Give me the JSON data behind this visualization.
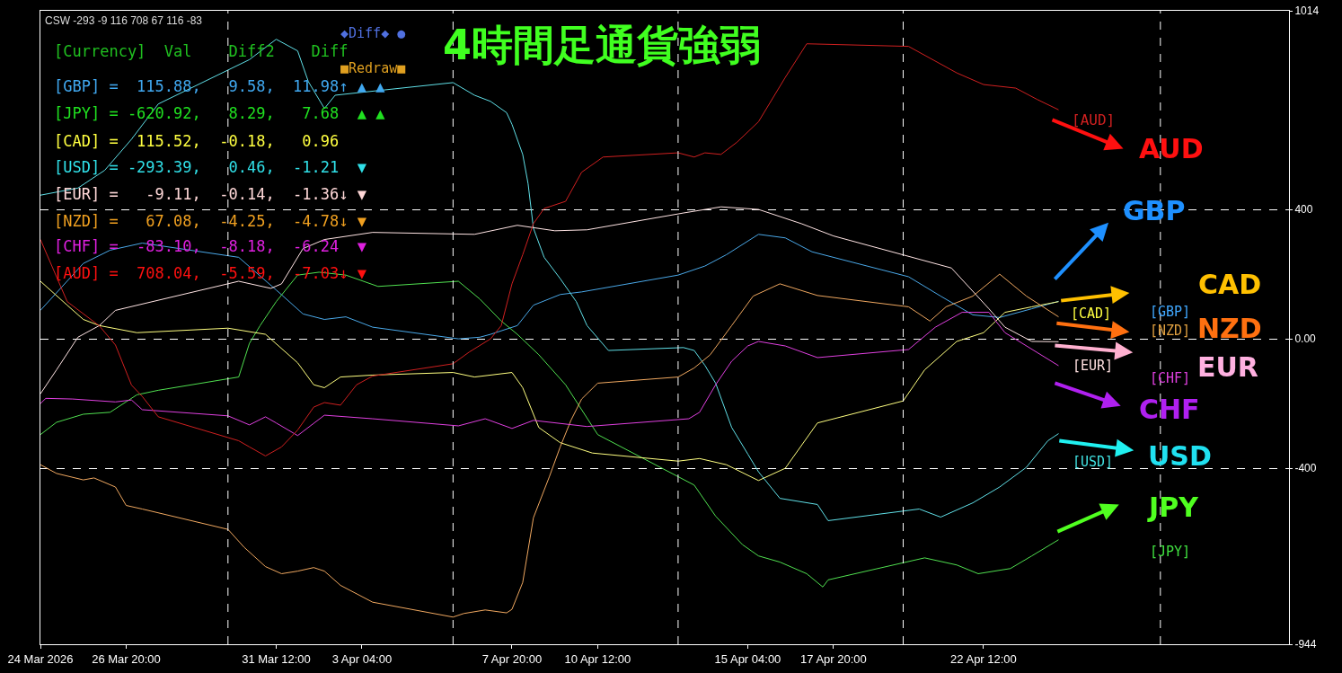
{
  "chart_data": {
    "type": "line",
    "title": "4時間足通貨強弱",
    "xlim": [
      "2026-03-24T04:00",
      "2026-05-02T00:00"
    ],
    "xticks": [
      {
        "value": "2026-03-24T04:00",
        "label": "24 Mar 2026"
      },
      {
        "value": "2026-03-26T20:00",
        "label": "26 Mar 20:00"
      },
      {
        "value": "2026-03-31T12:00",
        "label": "31 Mar 12:00"
      },
      {
        "value": "2026-04-03T04:00",
        "label": "3 Apr 04:00"
      },
      {
        "value": "2026-04-07T20:00",
        "label": "7 Apr 20:00"
      },
      {
        "value": "2026-04-10T12:00",
        "label": "10 Apr 12:00"
      },
      {
        "value": "2026-04-15T04:00",
        "label": "15 Apr 04:00"
      },
      {
        "value": "2026-04-17T20:00",
        "label": "17 Apr 20:00"
      },
      {
        "value": "2026-04-22T12:00",
        "label": "22 Apr 12:00"
      }
    ],
    "ylim": [
      -944,
      1014
    ],
    "yticks": [
      1014,
      400,
      {
        "value": 0,
        "label": "0.00"
      },
      -400,
      -944
    ],
    "grid": "y",
    "marker": "none",
    "line_style": "solid",
    "ref_lines": [
      {
        "axis": "x",
        "value": "2026-03-30T00:00",
        "color": "#ffffff",
        "line_style": "dashed"
      },
      {
        "axis": "x",
        "value": "2026-04-06T00:00",
        "color": "#ffffff",
        "line_style": "dashed"
      },
      {
        "axis": "x",
        "value": "2026-04-13T00:00",
        "color": "#ffffff",
        "line_style": "dashed"
      },
      {
        "axis": "x",
        "value": "2026-04-20T00:00",
        "color": "#ffffff",
        "line_style": "dashed"
      },
      {
        "axis": "x",
        "value": "2026-04-28T00:00",
        "color": "#ffffff",
        "line_style": "dashed"
      }
    ],
    "series": [
      {
        "color": "#4aa8e8",
        "x": [
          "2026-03-24T04:00",
          "2026-03-25T12:00",
          "2026-03-26T08:00",
          "2026-03-27T08:00",
          "2026-03-30T08:00",
          "2026-03-31T12:00",
          "2026-04-01T08:00",
          "2026-04-02T00:00",
          "2026-04-02T16:00",
          "2026-04-03T12:00",
          "2026-04-06T04:00",
          "2026-04-06T20:00",
          "2026-04-07T04:00",
          "2026-04-08T00:00",
          "2026-04-08T12:00",
          "2026-04-09T08:00",
          "2026-04-10T00:00",
          "2026-04-13T00:00",
          "2026-04-13T20:00",
          "2026-04-14T12:00",
          "2026-04-15T12:00",
          "2026-04-16T08:00",
          "2026-04-17T04:00",
          "2026-04-20T04:00",
          "2026-04-21T04:00",
          "2026-04-22T04:00",
          "2026-04-23T00:00",
          "2026-04-24T00:00",
          "2026-04-24T20:00"
        ],
        "values": [
          88,
          233,
          274,
          296,
          252,
          151,
          77,
          60,
          68,
          36,
          0,
          5,
          14,
          41,
          104,
          137,
          145,
          197,
          225,
          260,
          323,
          312,
          269,
          192,
          132,
          74,
          66,
          93,
          116
        ]
      },
      {
        "color": "#50e050",
        "x": [
          "2026-03-24T04:00",
          "2026-03-24T16:00",
          "2026-03-25T12:00",
          "2026-03-26T08:00",
          "2026-03-27T04:00",
          "2026-03-27T20:00",
          "2026-03-30T08:00",
          "2026-03-30T16:00",
          "2026-03-31T00:00",
          "2026-03-31T12:00",
          "2026-04-01T04:00",
          "2026-04-01T20:00",
          "2026-04-02T16:00",
          "2026-04-03T16:00",
          "2026-04-06T04:00",
          "2026-04-06T20:00",
          "2026-04-07T12:00",
          "2026-04-08T00:00",
          "2026-04-08T16:00",
          "2026-04-09T12:00",
          "2026-04-10T12:00",
          "2026-04-13T12:00",
          "2026-04-14T04:00",
          "2026-04-15T00:00",
          "2026-04-15T12:00",
          "2026-04-16T04:00",
          "2026-04-17T00:00",
          "2026-04-17T12:00",
          "2026-04-17T16:00",
          "2026-04-20T16:00",
          "2026-04-21T16:00",
          "2026-04-22T08:00",
          "2026-04-23T08:00",
          "2026-04-24T00:00",
          "2026-04-24T20:00"
        ],
        "values": [
          -296,
          -258,
          -233,
          -227,
          -173,
          -159,
          -118,
          -14,
          41,
          115,
          197,
          206,
          197,
          162,
          178,
          123,
          55,
          14,
          -49,
          -142,
          -296,
          -452,
          -548,
          -636,
          -671,
          -690,
          -726,
          -767,
          -745,
          -677,
          -699,
          -726,
          -710,
          -671,
          -621
        ]
      },
      {
        "color": "#ffff80",
        "x": [
          "2026-03-24T04:00",
          "2026-03-25T00:00",
          "2026-03-25T12:00",
          "2026-03-26T00:00",
          "2026-03-27T04:00",
          "2026-03-30T00:00",
          "2026-03-31T04:00",
          "2026-04-01T04:00",
          "2026-04-01T16:00",
          "2026-04-02T00:00",
          "2026-04-02T12:00",
          "2026-04-03T12:00",
          "2026-04-06T00:00",
          "2026-04-06T16:00",
          "2026-04-07T20:00",
          "2026-04-08T04:00",
          "2026-04-08T16:00",
          "2026-04-09T08:00",
          "2026-04-10T08:00",
          "2026-04-13T00:00",
          "2026-04-13T16:00",
          "2026-04-14T12:00",
          "2026-04-15T12:00",
          "2026-04-16T08:00",
          "2026-04-17T08:00",
          "2026-04-20T00:00",
          "2026-04-20T16:00",
          "2026-04-21T16:00",
          "2026-04-22T12:00",
          "2026-04-23T04:00",
          "2026-04-24T00:00",
          "2026-04-24T20:00"
        ],
        "values": [
          178,
          104,
          60,
          41,
          19,
          33,
          14,
          -74,
          -142,
          -151,
          -118,
          -112,
          -104,
          -118,
          -104,
          -151,
          -274,
          -321,
          -353,
          -378,
          -370,
          -389,
          -438,
          -400,
          -260,
          -192,
          -96,
          -8,
          19,
          82,
          99,
          115
        ]
      },
      {
        "color": "#60e0e8",
        "x": [
          "2026-03-24T04:00",
          "2026-03-25T08:00",
          "2026-03-26T04:00",
          "2026-03-27T00:00",
          "2026-03-27T20:00",
          "2026-03-30T16:00",
          "2026-03-31T12:00",
          "2026-04-01T04:00",
          "2026-04-01T12:00",
          "2026-04-02T00:00",
          "2026-04-02T08:00",
          "2026-04-03T04:00",
          "2026-04-06T00:00",
          "2026-04-06T16:00",
          "2026-04-07T04:00",
          "2026-04-07T16:00",
          "2026-04-07T20:00",
          "2026-04-08T04:00",
          "2026-04-08T08:00",
          "2026-04-08T12:00",
          "2026-04-08T20:00",
          "2026-04-09T08:00",
          "2026-04-09T20:00",
          "2026-04-10T04:00",
          "2026-04-10T20:00",
          "2026-04-13T04:00",
          "2026-04-13T12:00",
          "2026-04-13T20:00",
          "2026-04-14T04:00",
          "2026-04-14T16:00",
          "2026-04-15T04:00",
          "2026-04-15T12:00",
          "2026-04-16T04:00",
          "2026-04-17T08:00",
          "2026-04-17T16:00",
          "2026-04-20T12:00",
          "2026-04-21T04:00",
          "2026-04-22T04:00",
          "2026-04-23T00:00",
          "2026-04-23T20:00",
          "2026-04-24T12:00",
          "2026-04-24T20:00"
        ],
        "values": [
          444,
          466,
          521,
          617,
          726,
          863,
          926,
          890,
          795,
          712,
          753,
          762,
          792,
          753,
          734,
          699,
          663,
          570,
          480,
          342,
          252,
          186,
          115,
          41,
          -36,
          -27,
          -36,
          -82,
          -137,
          -274,
          -356,
          -411,
          -493,
          -512,
          -562,
          -526,
          -551,
          -507,
          -458,
          -397,
          -315,
          -293
        ]
      },
      {
        "color": "#ffe4e4",
        "x": [
          "2026-03-24T04:00",
          "2026-03-24T16:00",
          "2026-03-25T08:00",
          "2026-03-26T00:00",
          "2026-03-26T12:00",
          "2026-03-30T08:00",
          "2026-03-31T08:00",
          "2026-03-31T16:00",
          "2026-04-01T08:00",
          "2026-04-02T00:00",
          "2026-04-03T12:00",
          "2026-04-06T16:00",
          "2026-04-08T00:00",
          "2026-04-09T04:00",
          "2026-04-10T04:00",
          "2026-04-13T04:00",
          "2026-04-14T08:00",
          "2026-04-15T12:00",
          "2026-04-16T20:00",
          "2026-04-17T20:00",
          "2026-04-21T12:00",
          "2026-04-22T16:00",
          "2026-04-23T04:00",
          "2026-04-24T00:00",
          "2026-04-24T20:00"
        ],
        "values": [
          -170,
          -96,
          5,
          41,
          88,
          178,
          156,
          170,
          279,
          307,
          329,
          323,
          351,
          334,
          337,
          389,
          408,
          400,
          356,
          318,
          219,
          93,
          36,
          -8,
          -9
        ]
      },
      {
        "color": "#f0a860",
        "x": [
          "2026-03-24T04:00",
          "2026-03-24T16:00",
          "2026-03-25T12:00",
          "2026-03-25T20:00",
          "2026-03-26T12:00",
          "2026-03-26T20:00",
          "2026-03-27T08:00",
          "2026-03-30T00:00",
          "2026-03-30T12:00",
          "2026-03-31T04:00",
          "2026-03-31T16:00",
          "2026-04-01T04:00",
          "2026-04-01T16:00",
          "2026-04-02T00:00",
          "2026-04-02T12:00",
          "2026-04-03T12:00",
          "2026-04-06T00:00",
          "2026-04-06T08:00",
          "2026-04-07T00:00",
          "2026-04-07T16:00",
          "2026-04-07T20:00",
          "2026-04-08T04:00",
          "2026-04-08T12:00",
          "2026-04-09T00:00",
          "2026-04-09T08:00",
          "2026-04-09T16:00",
          "2026-04-10T00:00",
          "2026-04-10T12:00",
          "2026-04-13T00:00",
          "2026-04-13T12:00",
          "2026-04-14T00:00",
          "2026-04-14T16:00",
          "2026-04-15T08:00",
          "2026-04-16T04:00",
          "2026-04-17T08:00",
          "2026-04-20T04:00",
          "2026-04-20T20:00",
          "2026-04-21T08:00",
          "2026-04-22T04:00",
          "2026-04-23T00:00",
          "2026-04-23T20:00",
          "2026-04-24T20:00"
        ],
        "values": [
          -389,
          -416,
          -436,
          -430,
          -458,
          -515,
          -526,
          -589,
          -644,
          -704,
          -726,
          -718,
          -707,
          -718,
          -762,
          -814,
          -860,
          -849,
          -838,
          -847,
          -836,
          -753,
          -553,
          -425,
          -334,
          -252,
          -186,
          -137,
          -118,
          -90,
          -49,
          41,
          132,
          170,
          134,
          99,
          55,
          99,
          132,
          200,
          132,
          68
        ]
      },
      {
        "color": "#e040e0",
        "x": [
          "2026-03-24T04:00",
          "2026-03-24T08:00",
          "2026-03-25T04:00",
          "2026-03-26T12:00",
          "2026-03-27T00:00",
          "2026-03-27T08:00",
          "2026-03-30T00:00",
          "2026-03-30T16:00",
          "2026-03-31T04:00",
          "2026-03-31T12:00",
          "2026-04-01T04:00",
          "2026-04-02T00:00",
          "2026-04-03T12:00",
          "2026-04-06T04:00",
          "2026-04-07T00:00",
          "2026-04-07T20:00",
          "2026-04-08T12:00",
          "2026-04-10T04:00",
          "2026-04-13T08:00",
          "2026-04-13T16:00",
          "2026-04-14T04:00",
          "2026-04-14T16:00",
          "2026-04-15T04:00",
          "2026-04-15T12:00",
          "2026-04-16T08:00",
          "2026-04-17T08:00",
          "2026-04-20T04:00",
          "2026-04-21T00:00",
          "2026-04-21T20:00",
          "2026-04-22T16:00",
          "2026-04-23T04:00",
          "2026-04-24T20:00"
        ],
        "values": [
          -200,
          -184,
          -186,
          -195,
          -189,
          -219,
          -238,
          -266,
          -241,
          -260,
          -299,
          -236,
          -247,
          -269,
          -247,
          -277,
          -252,
          -271,
          -247,
          -227,
          -142,
          -69,
          -22,
          -8,
          -22,
          -58,
          -33,
          36,
          82,
          82,
          19,
          -83
        ]
      },
      {
        "color": "#d02020",
        "x": [
          "2026-03-24T04:00",
          "2026-03-25T00:00",
          "2026-03-26T00:00",
          "2026-03-26T12:00",
          "2026-03-27T00:00",
          "2026-03-27T08:00",
          "2026-03-27T20:00",
          "2026-03-30T08:00",
          "2026-03-30T16:00",
          "2026-03-31T04:00",
          "2026-03-31T16:00",
          "2026-04-01T04:00",
          "2026-04-01T16:00",
          "2026-04-02T00:00",
          "2026-04-02T12:00",
          "2026-04-03T00:00",
          "2026-04-03T12:00",
          "2026-04-06T00:00",
          "2026-04-06T12:00",
          "2026-04-07T04:00",
          "2026-04-07T12:00",
          "2026-04-07T20:00",
          "2026-04-08T04:00",
          "2026-04-08T12:00",
          "2026-04-08T20:00",
          "2026-04-09T12:00",
          "2026-04-10T00:00",
          "2026-04-10T16:00",
          "2026-04-13T00:00",
          "2026-04-13T12:00",
          "2026-04-13T20:00",
          "2026-04-14T08:00",
          "2026-04-14T20:00",
          "2026-04-15T12:00",
          "2026-04-16T08:00",
          "2026-04-17T00:00",
          "2026-04-20T04:00",
          "2026-04-21T16:00",
          "2026-04-22T12:00",
          "2026-04-23T12:00",
          "2026-04-24T04:00",
          "2026-04-24T20:00"
        ],
        "values": [
          307,
          115,
          40,
          -19,
          -143,
          -178,
          -241,
          -315,
          -334,
          -362,
          -334,
          -282,
          -211,
          -197,
          -205,
          -142,
          -115,
          -77,
          -41,
          0,
          41,
          170,
          260,
          356,
          403,
          425,
          515,
          562,
          575,
          562,
          575,
          570,
          608,
          671,
          808,
          912,
          904,
          822,
          786,
          775,
          740,
          708
        ]
      }
    ],
    "annotations": [
      "CSW -293 -9 116 708 67 116 -83",
      "[Currency]  Val    Diff2    Diff",
      "[GBP] =  115.88,   9.58,  11.98↑ ▲ ▲",
      "[JPY] = -620.92,   8.29,   7.68  ▲ ▲",
      "[CAD] =  115.52,  -0.18,   0.96",
      "[USD] = -293.39,   0.46,  -1.21  ▼",
      "[EUR] =   -9.11,  -0.14,  -1.36↓ ▼",
      "[NZD] =   67.08,  -4.25,  -4.78↓ ▼",
      "[CHF] =  -83.10,  -8.18,  -6.24  ▼",
      "[AUD] =  708.04,  -5.59,  -7.03↓ ▼",
      "◆Diff◆ ●",
      "■Redraw■",
      "[AUD]",
      "AUD",
      "GBP",
      "CAD",
      "[CAD]",
      "[GBP]",
      "NZD",
      "[NZD]",
      "[EUR]",
      "EUR",
      "[CHF]",
      "CHF",
      "[USD]",
      "USD",
      "JPY",
      "[JPY]"
    ]
  }
}
